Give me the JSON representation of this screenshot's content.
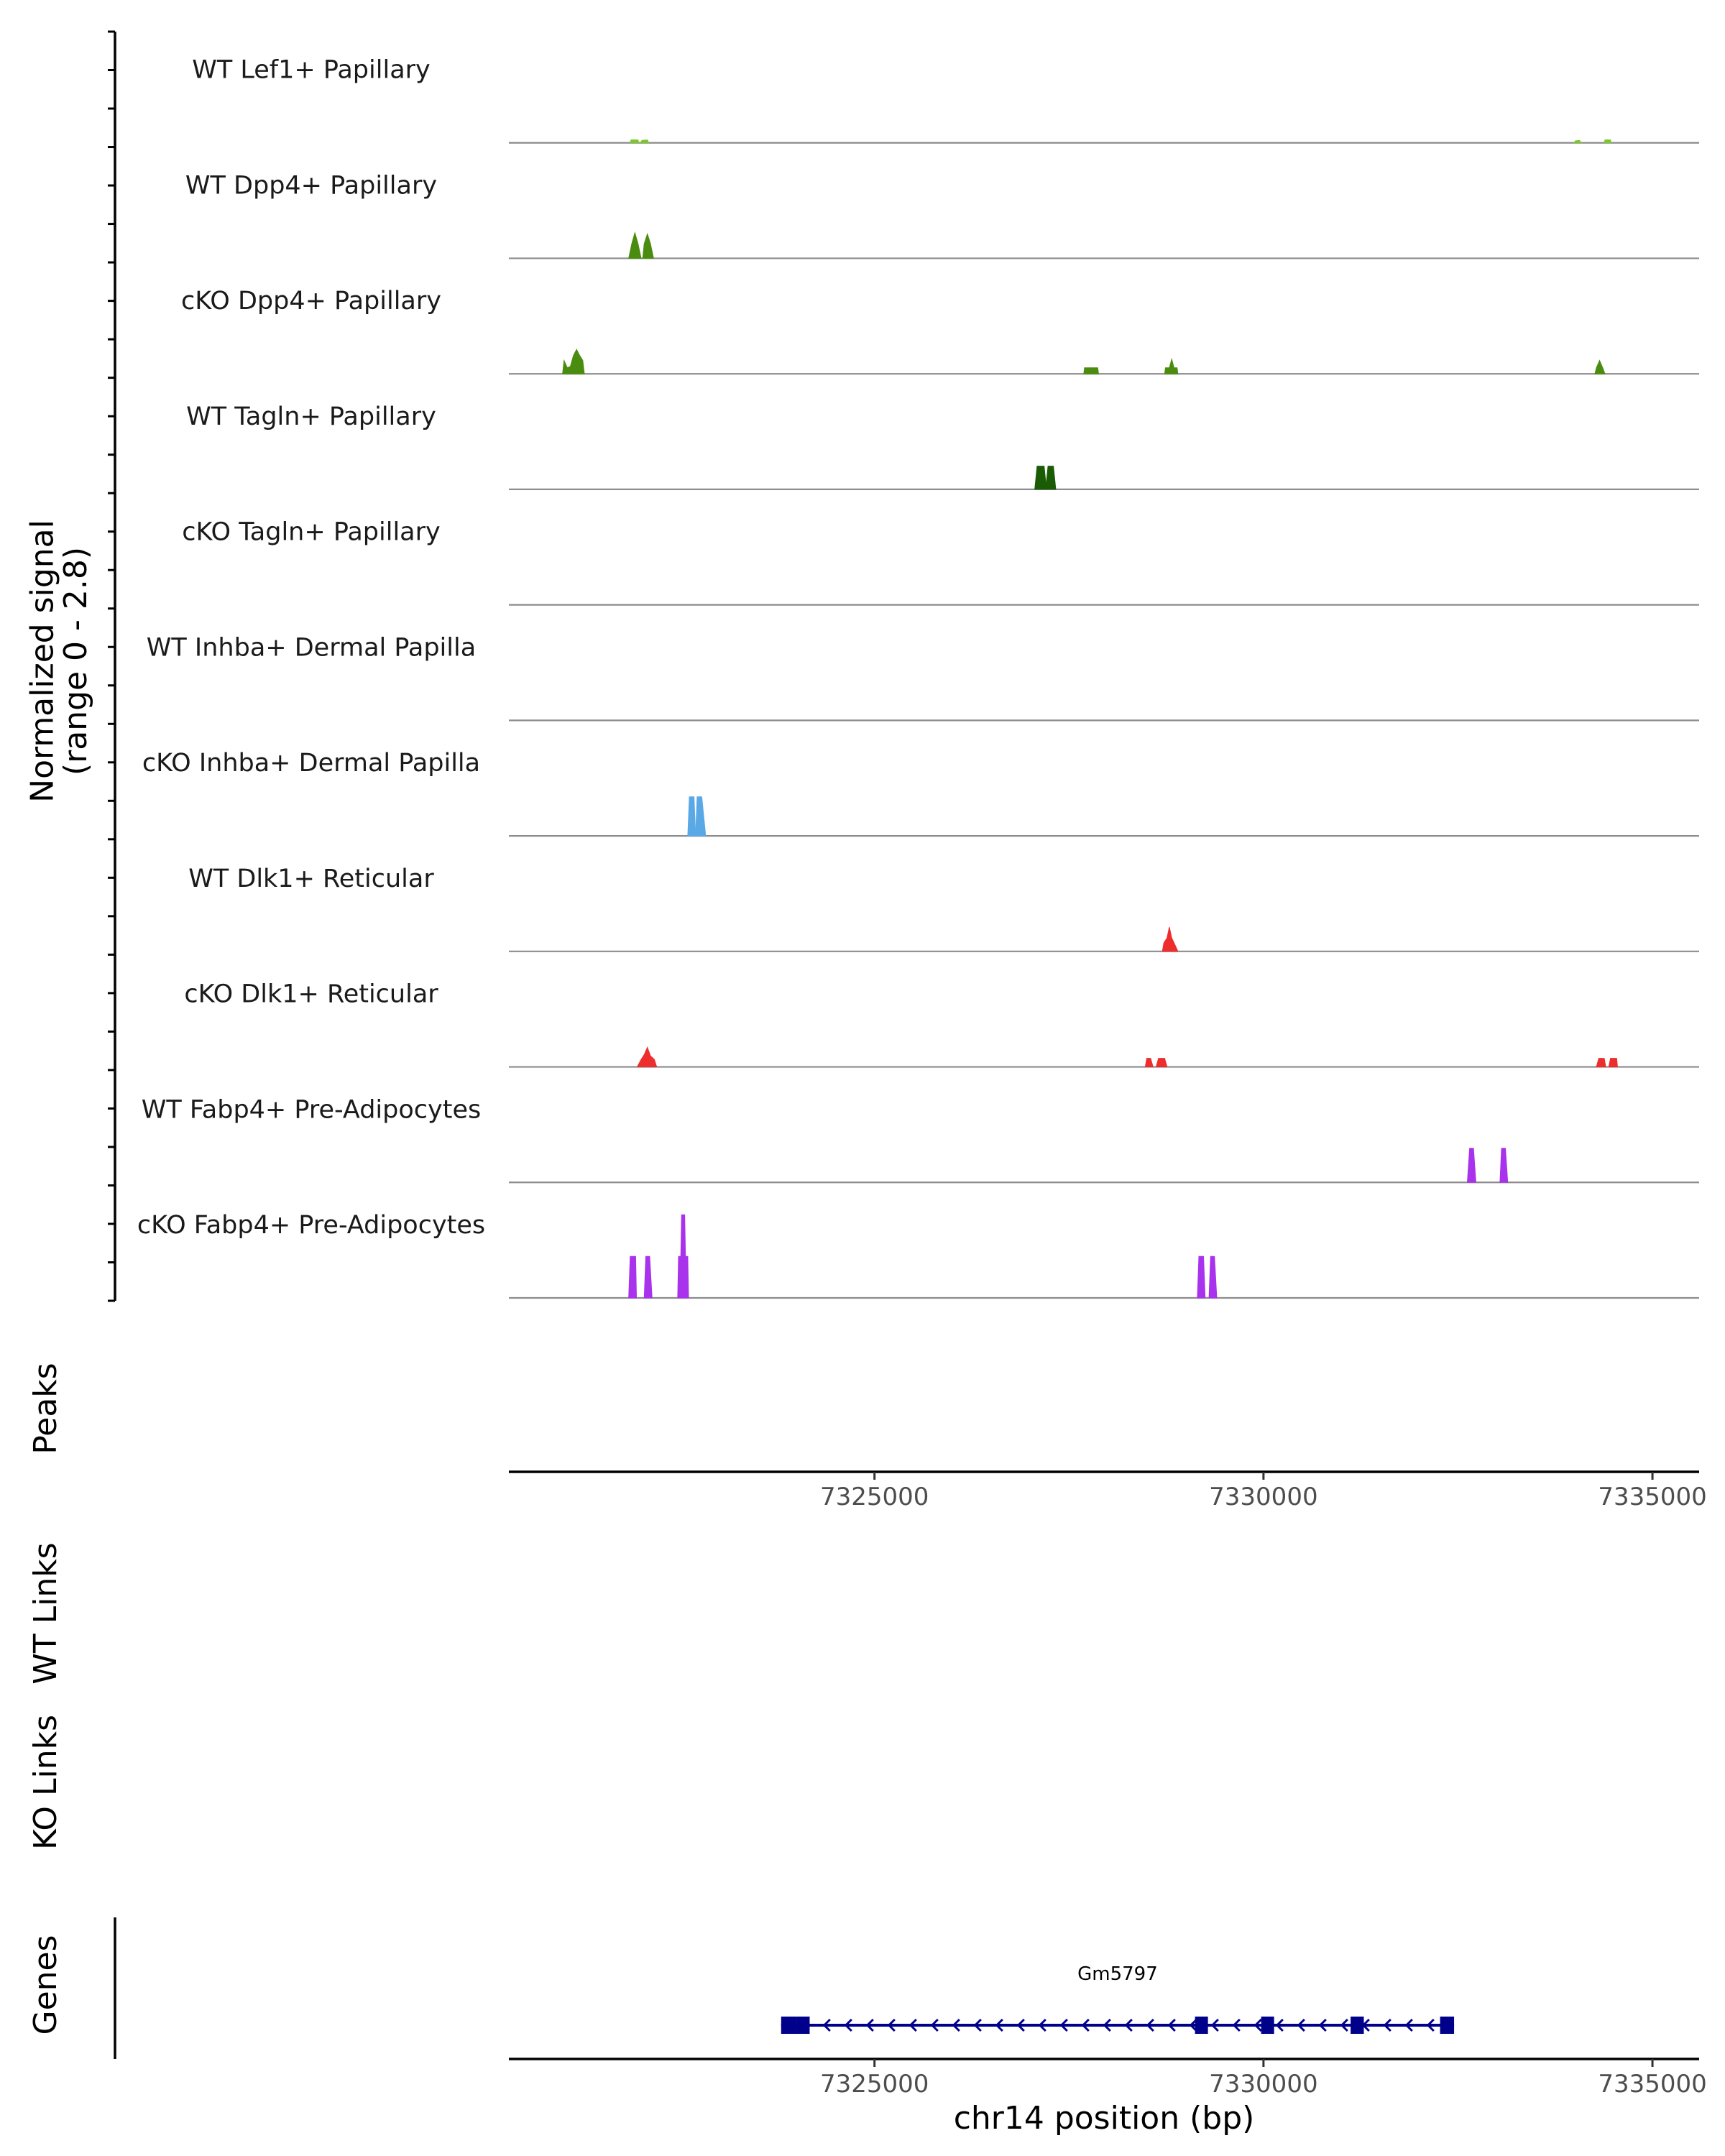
{
  "chart_data": {
    "type": "area",
    "title": "",
    "xlabel": "chr14 position (bp)",
    "ylabel": "Normalized signal\n(range 0 - 2.8)",
    "ylabel_lines": [
      "Normalized signal",
      "(range 0 - 2.8)"
    ],
    "ylim": [
      0,
      2.8
    ],
    "xlim": [
      7320300,
      7335600
    ],
    "x_ticks": [
      7325000,
      7330000,
      7335000
    ],
    "x_tick_labels": [
      "7325000",
      "7330000",
      "7335000"
    ],
    "tracks": [
      {
        "name": "WT Lef1+ Papillary",
        "color": "#7ec62e",
        "segments": [
          [
            [
              7321860,
              0
            ],
            [
              7321870,
              0.12
            ],
            [
              7321960,
              0.12
            ],
            [
              7321970,
              0
            ]
          ],
          [
            [
              7321990,
              0
            ],
            [
              7322010,
              0.1
            ],
            [
              7322080,
              0.12
            ],
            [
              7322100,
              0
            ]
          ],
          [
            [
              7333990,
              0
            ],
            [
              7334010,
              0.08
            ],
            [
              7334060,
              0.1
            ],
            [
              7334090,
              0
            ]
          ],
          [
            [
              7334380,
              0
            ],
            [
              7334390,
              0.12
            ],
            [
              7334460,
              0.12
            ],
            [
              7334470,
              0
            ]
          ]
        ]
      },
      {
        "name": "WT Dpp4+ Papillary",
        "color": "#4a8c0f",
        "segments": [
          [
            [
              7321840,
              0
            ],
            [
              7321880,
              0.6
            ],
            [
              7321920,
              1.05
            ],
            [
              7321960,
              0.6
            ],
            [
              7322000,
              0
            ]
          ],
          [
            [
              7322020,
              0
            ],
            [
              7322040,
              0.6
            ],
            [
              7322080,
              1.0
            ],
            [
              7322120,
              0.6
            ],
            [
              7322160,
              0
            ]
          ]
        ]
      },
      {
        "name": "cKO Dpp4+ Papillary",
        "color": "#4a8c0f",
        "segments": [
          [
            [
              7320990,
              0
            ],
            [
              7321010,
              0.55
            ],
            [
              7321050,
              0.25
            ],
            [
              7321090,
              0.3
            ],
            [
              7321130,
              0.75
            ],
            [
              7321170,
              1.0
            ],
            [
              7321210,
              0.75
            ],
            [
              7321250,
              0.55
            ],
            [
              7321270,
              0
            ]
          ],
          [
            [
              7327690,
              0
            ],
            [
              7327700,
              0.25
            ],
            [
              7327870,
              0.25
            ],
            [
              7327880,
              0
            ]
          ],
          [
            [
              7328730,
              0
            ],
            [
              7328740,
              0.25
            ],
            [
              7328790,
              0.25
            ],
            [
              7328820,
              0.6
            ],
            [
              7328850,
              0.25
            ],
            [
              7328890,
              0.25
            ],
            [
              7328900,
              0
            ]
          ],
          [
            [
              7334260,
              0
            ],
            [
              7334280,
              0.25
            ],
            [
              7334320,
              0.55
            ],
            [
              7334360,
              0.25
            ],
            [
              7334390,
              0
            ]
          ]
        ]
      },
      {
        "name": "WT Tagln+ Papillary",
        "color": "#1a5c05",
        "segments": [
          [
            [
              7327060,
              0
            ],
            [
              7327090,
              0.95
            ],
            [
              7327180,
              0.95
            ],
            [
              7327210,
              0
            ]
          ],
          [
            [
              7327200,
              0
            ],
            [
              7327230,
              0.95
            ],
            [
              7327300,
              0.95
            ],
            [
              7327330,
              0
            ]
          ]
        ]
      },
      {
        "name": "cKO Tagln+ Papillary",
        "color": "#1a5c05",
        "segments": []
      },
      {
        "name": "WT Inhba+ Dermal Papilla",
        "color": "#5aa9e6",
        "segments": []
      },
      {
        "name": "cKO Inhba+ Dermal Papilla",
        "color": "#5aa9e6",
        "segments": [
          [
            [
              7322600,
              0
            ],
            [
              7322620,
              1.6
            ],
            [
              7322680,
              1.6
            ],
            [
              7322700,
              0
            ]
          ],
          [
            [
              7322700,
              0
            ],
            [
              7322720,
              1.6
            ],
            [
              7322780,
              1.6
            ],
            [
              7322830,
              0
            ]
          ]
        ]
      },
      {
        "name": "WT Dlk1+ Reticular",
        "color": "#ee2d2d",
        "segments": [
          [
            [
              7328700,
              0
            ],
            [
              7328720,
              0.35
            ],
            [
              7328760,
              0.55
            ],
            [
              7328790,
              1.0
            ],
            [
              7328820,
              0.55
            ],
            [
              7328850,
              0.35
            ],
            [
              7328900,
              0
            ]
          ]
        ]
      },
      {
        "name": "cKO Dlk1+ Reticular",
        "color": "#ee2d2d",
        "segments": [
          [
            [
              7321950,
              0
            ],
            [
              7322000,
              0.3
            ],
            [
              7322040,
              0.5
            ],
            [
              7322080,
              0.8
            ],
            [
              7322120,
              0.45
            ],
            [
              7322170,
              0.3
            ],
            [
              7322200,
              0
            ]
          ],
          [
            [
              7328480,
              0
            ],
            [
              7328500,
              0.35
            ],
            [
              7328550,
              0.35
            ],
            [
              7328580,
              0
            ]
          ],
          [
            [
              7328620,
              0
            ],
            [
              7328650,
              0.35
            ],
            [
              7328730,
              0.35
            ],
            [
              7328760,
              0
            ]
          ],
          [
            [
              7334280,
              0
            ],
            [
              7334310,
              0.35
            ],
            [
              7334380,
              0.35
            ],
            [
              7334400,
              0
            ]
          ],
          [
            [
              7334440,
              0
            ],
            [
              7334460,
              0.35
            ],
            [
              7334540,
              0.35
            ],
            [
              7334550,
              0
            ]
          ]
        ]
      },
      {
        "name": "WT Fabp4+ Pre-Adipocytes",
        "color": "#a933ec",
        "segments": [
          [
            [
              7332620,
              0
            ],
            [
              7332650,
              1.4
            ],
            [
              7332700,
              1.4
            ],
            [
              7332730,
              0
            ]
          ],
          [
            [
              7333040,
              0
            ],
            [
              7333060,
              1.4
            ],
            [
              7333110,
              1.4
            ],
            [
              7333140,
              0
            ]
          ]
        ]
      },
      {
        "name": "cKO Fabp4+ Pre-Adipocytes",
        "color": "#a933ec",
        "segments": [
          [
            [
              7321840,
              0
            ],
            [
              7321860,
              1.7
            ],
            [
              7321930,
              1.7
            ],
            [
              7321940,
              0
            ]
          ],
          [
            [
              7322040,
              0
            ],
            [
              7322060,
              1.7
            ],
            [
              7322110,
              1.7
            ],
            [
              7322140,
              0
            ]
          ],
          [
            [
              7322470,
              0
            ],
            [
              7322480,
              1.7
            ],
            [
              7322510,
              1.7
            ],
            [
              7322520,
              3.4
            ],
            [
              7322560,
              3.4
            ],
            [
              7322570,
              1.7
            ],
            [
              7322600,
              1.7
            ],
            [
              7322610,
              0
            ]
          ],
          [
            [
              7329150,
              0
            ],
            [
              7329170,
              1.7
            ],
            [
              7329230,
              1.7
            ],
            [
              7329250,
              0
            ]
          ],
          [
            [
              7329300,
              0
            ],
            [
              7329320,
              1.7
            ],
            [
              7329370,
              1.7
            ],
            [
              7329400,
              0
            ]
          ]
        ]
      }
    ],
    "panels": {
      "peaks": {
        "label": "Peaks"
      },
      "wt_links": {
        "label": "WT Links"
      },
      "ko_links": {
        "label": "KO Links"
      },
      "genes": {
        "label": "Genes"
      }
    },
    "genes": [
      {
        "name": "Gm5797",
        "strand": "-",
        "start": 7323800,
        "end": 7332450,
        "exons": [
          [
            7323800,
            7324000
          ],
          [
            7324000,
            7324130
          ],
          [
            7329120,
            7329280
          ],
          [
            7329970,
            7330120
          ],
          [
            7331120,
            7331290
          ],
          [
            7332270,
            7332450
          ]
        ],
        "color": "#00008b"
      }
    ]
  }
}
